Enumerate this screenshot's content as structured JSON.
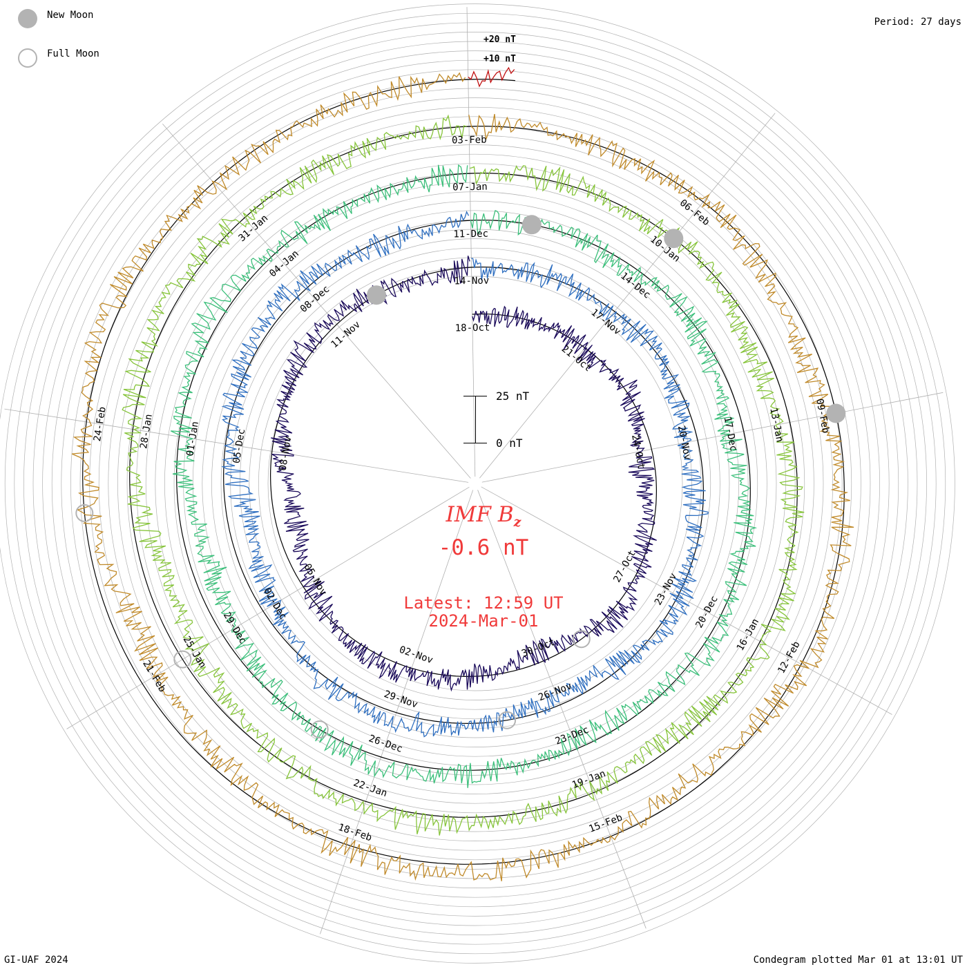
{
  "legend": {
    "new_moon": "New Moon",
    "full_moon": "Full Moon"
  },
  "header": {
    "period": "Period: 27 days"
  },
  "scale": {
    "plus20": "+20 nT",
    "plus10": "+10 nT",
    "bar_top": "25 nT",
    "bar_bottom": "0 nT"
  },
  "center": {
    "title_main": "IMF B",
    "title_sub": "z",
    "value": "-0.6 nT",
    "latest_time": "Latest: 12:59 UT",
    "latest_date": "2024-Mar-01"
  },
  "footer": {
    "credit": "GI-UAF 2024",
    "plotted": "Condegram plotted Mar 01 at 13:01 UT"
  },
  "colors": {
    "title": "#f03a3a",
    "moon": "#b3b3b3",
    "grid": "#b0b0b0"
  },
  "chart_data": {
    "type": "line",
    "subtype": "spiral condegram",
    "title": "IMF Bz",
    "units": "nT",
    "period_days": 27,
    "start_date": "2023-10-18",
    "end_date": "2024-03-01",
    "latest_value": -0.6,
    "date_labels": [
      "18-Oct",
      "21-Oct",
      "24-Oct",
      "27-Oct",
      "30-Oct",
      "02-Nov",
      "05-Nov",
      "08-Nov",
      "11-Nov",
      "14-Nov",
      "17-Nov",
      "20-Nov",
      "23-Nov",
      "26-Nov",
      "29-Nov",
      "02-Dec",
      "05-Dec",
      "08-Dec",
      "11-Dec",
      "14-Dec",
      "17-Dec",
      "20-Dec",
      "23-Dec",
      "26-Dec",
      "29-Dec",
      "01-Jan",
      "04-Jan",
      "07-Jan",
      "10-Jan",
      "13-Jan",
      "16-Jan",
      "19-Jan",
      "22-Jan",
      "25-Jan",
      "28-Jan",
      "31-Jan",
      "03-Feb",
      "06-Feb",
      "09-Feb",
      "12-Feb",
      "15-Feb",
      "18-Feb",
      "21-Feb",
      "24-Feb"
    ],
    "new_moons_day": [
      25,
      55,
      84,
      114
    ],
    "full_moons_day": [
      11,
      40,
      70,
      99,
      128
    ],
    "rotation_colors": [
      "#1a0a5a",
      "#2a2aa8",
      "#2f6fc0",
      "#35a8b8",
      "#3bbf7a",
      "#86c43a",
      "#b7b83a",
      "#c08a2a",
      "#c05a1a",
      "#c01010"
    ],
    "series_samples_nT": [
      -2,
      -1,
      1,
      -3,
      2,
      -5,
      -8,
      -3,
      0,
      4,
      -2,
      -6,
      -1,
      3,
      5,
      2,
      -4,
      -9,
      -12,
      -4,
      1,
      6,
      3,
      -2,
      -1,
      0,
      2
    ]
  }
}
